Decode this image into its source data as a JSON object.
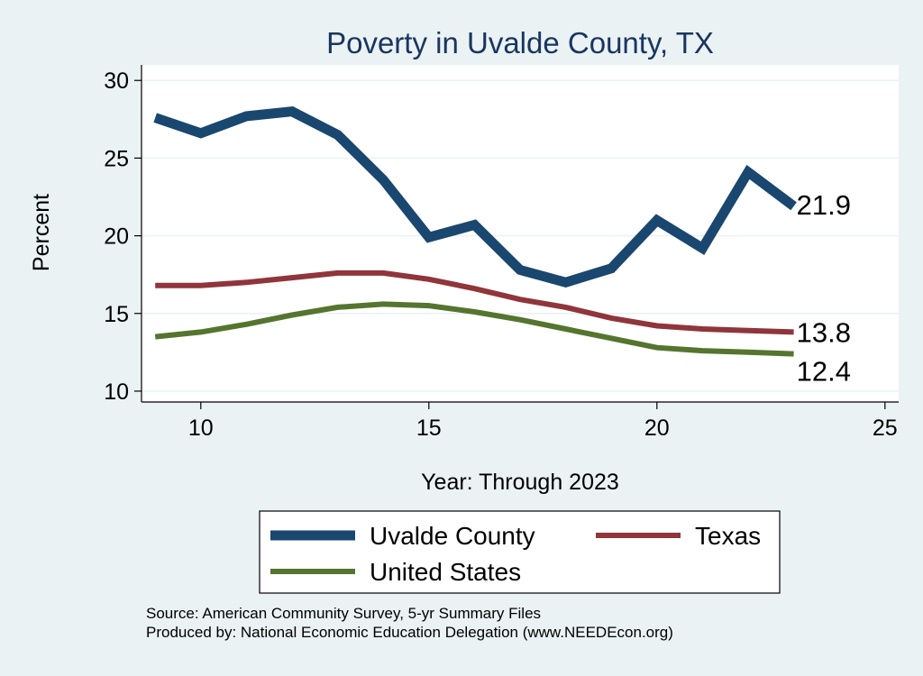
{
  "chart_data": {
    "type": "line",
    "title": "Poverty in Uvalde County, TX",
    "xlabel": "Year: Through 2023",
    "ylabel": "Percent",
    "xlim": [
      8.7,
      25.3
    ],
    "ylim": [
      9.3,
      31
    ],
    "xticks": [
      10,
      15,
      20,
      25
    ],
    "yticks": [
      10,
      15,
      20,
      25,
      30
    ],
    "grid": true,
    "legend_position": "bottom",
    "series": [
      {
        "name": "Uvalde County",
        "color": "#1a476f",
        "width": 11,
        "x": [
          9,
          10,
          11,
          12,
          13,
          14,
          15,
          16,
          17,
          18,
          19,
          20,
          21,
          22,
          23
        ],
        "values": [
          27.6,
          26.6,
          27.7,
          28.0,
          26.5,
          23.6,
          19.9,
          20.7,
          17.8,
          17.0,
          17.9,
          21.0,
          19.2,
          24.1,
          21.9
        ],
        "end_label": "21.9"
      },
      {
        "name": "Texas",
        "color": "#90353b",
        "width": 6,
        "x": [
          9,
          10,
          11,
          12,
          13,
          14,
          15,
          16,
          17,
          18,
          19,
          20,
          21,
          22,
          23
        ],
        "values": [
          16.8,
          16.8,
          17.0,
          17.3,
          17.6,
          17.6,
          17.2,
          16.6,
          15.9,
          15.4,
          14.7,
          14.2,
          14.0,
          13.9,
          13.8
        ],
        "end_label": "13.8"
      },
      {
        "name": "United States",
        "color": "#55752f",
        "width": 6,
        "x": [
          9,
          10,
          11,
          12,
          13,
          14,
          15,
          16,
          17,
          18,
          19,
          20,
          21,
          22,
          23
        ],
        "values": [
          13.5,
          13.8,
          14.3,
          14.9,
          15.4,
          15.6,
          15.5,
          15.1,
          14.6,
          14.0,
          13.4,
          12.8,
          12.6,
          12.5,
          12.4
        ],
        "end_label": "12.4"
      }
    ]
  },
  "footer": {
    "source": "Source: American Community Survey, 5-yr Summary Files",
    "producer": "Produced by: National Economic Education Delegation (www.NEEDEcon.org)"
  }
}
